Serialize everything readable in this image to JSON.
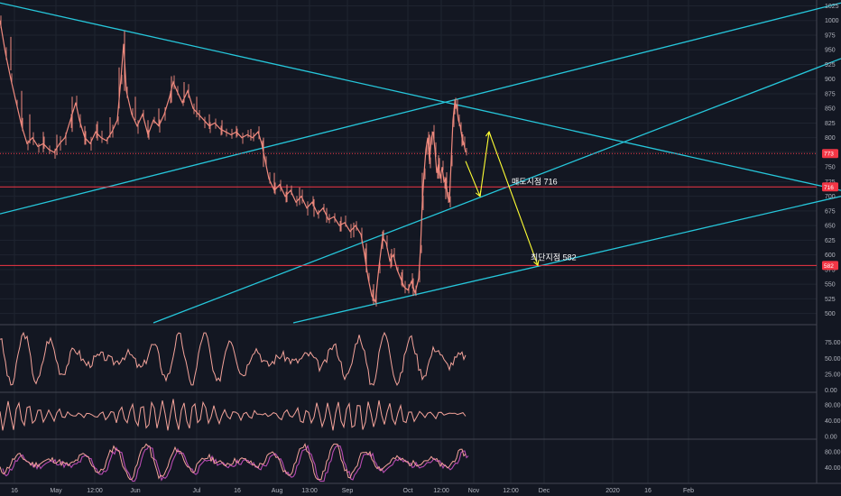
{
  "colors": {
    "background": "#131722",
    "grid": "#1f2430",
    "axis_text": "#b2b5be",
    "candle": "#f08a7e",
    "trendline": "#26c6da",
    "level": "#f23645",
    "arrow": "#ffff33",
    "oscillator": "#f4a39a",
    "signal": "#b84bb3"
  },
  "chart_data": [
    {
      "type": "line",
      "name": "price",
      "y_axis": {
        "ticks": [
          1025,
          1000,
          975,
          950,
          925,
          900,
          875,
          850,
          825,
          800,
          775,
          750,
          725,
          700,
          675,
          650,
          625,
          600,
          575,
          550,
          525,
          500
        ],
        "tick_labels": [
          "1025",
          "1000",
          "975",
          "950",
          "925",
          "900",
          "875",
          "850",
          "825",
          "800",
          "775",
          "750",
          "725",
          "700",
          "675",
          "650",
          "625",
          "600",
          "575",
          "550",
          "525",
          "500"
        ],
        "ylim": [
          484,
          1035
        ]
      },
      "x_axis": {
        "ticks": [
          16,
          62,
          105,
          150,
          218,
          263,
          307,
          343,
          385,
          452,
          489,
          525,
          566,
          603,
          679,
          718,
          763
        ],
        "labels": [
          "16",
          "May",
          "12:00",
          "Jun",
          "Jul",
          "16",
          "Aug",
          "13:00",
          "Sep",
          "Oct",
          "12:00",
          "Nov",
          "12:00",
          "Dec",
          "2020",
          "16",
          "Feb"
        ]
      },
      "price_points": [
        [
          0,
          1000
        ],
        [
          6,
          945
        ],
        [
          12,
          900
        ],
        [
          18,
          860
        ],
        [
          24,
          820
        ],
        [
          30,
          790
        ],
        [
          36,
          800
        ],
        [
          42,
          785
        ],
        [
          48,
          790
        ],
        [
          54,
          780
        ],
        [
          60,
          775
        ],
        [
          66,
          790
        ],
        [
          72,
          800
        ],
        [
          78,
          830
        ],
        [
          84,
          860
        ],
        [
          88,
          830
        ],
        [
          94,
          800
        ],
        [
          100,
          790
        ],
        [
          106,
          810
        ],
        [
          112,
          800
        ],
        [
          118,
          795
        ],
        [
          124,
          810
        ],
        [
          130,
          830
        ],
        [
          134,
          900
        ],
        [
          137,
          960
        ],
        [
          140,
          880
        ],
        [
          146,
          840
        ],
        [
          152,
          820
        ],
        [
          158,
          840
        ],
        [
          164,
          805
        ],
        [
          170,
          830
        ],
        [
          176,
          820
        ],
        [
          182,
          840
        ],
        [
          188,
          870
        ],
        [
          192,
          895
        ],
        [
          196,
          880
        ],
        [
          202,
          860
        ],
        [
          208,
          880
        ],
        [
          214,
          850
        ],
        [
          220,
          840
        ],
        [
          226,
          830
        ],
        [
          232,
          820
        ],
        [
          238,
          825
        ],
        [
          244,
          815
        ],
        [
          250,
          810
        ],
        [
          256,
          805
        ],
        [
          262,
          810
        ],
        [
          268,
          800
        ],
        [
          274,
          805
        ],
        [
          280,
          800
        ],
        [
          286,
          810
        ],
        [
          290,
          790
        ],
        [
          294,
          760
        ],
        [
          298,
          730
        ],
        [
          304,
          710
        ],
        [
          310,
          720
        ],
        [
          316,
          700
        ],
        [
          322,
          710
        ],
        [
          328,
          690
        ],
        [
          334,
          700
        ],
        [
          340,
          680
        ],
        [
          346,
          690
        ],
        [
          352,
          670
        ],
        [
          358,
          680
        ],
        [
          364,
          660
        ],
        [
          370,
          665
        ],
        [
          376,
          650
        ],
        [
          382,
          655
        ],
        [
          388,
          640
        ],
        [
          394,
          650
        ],
        [
          400,
          635
        ],
        [
          404,
          600
        ],
        [
          408,
          560
        ],
        [
          412,
          530
        ],
        [
          416,
          520
        ],
        [
          420,
          580
        ],
        [
          424,
          630
        ],
        [
          428,
          620
        ],
        [
          432,
          590
        ],
        [
          436,
          600
        ],
        [
          440,
          575
        ],
        [
          444,
          560
        ],
        [
          448,
          545
        ],
        [
          452,
          540
        ],
        [
          456,
          555
        ],
        [
          460,
          535
        ],
        [
          464,
          560
        ],
        [
          466,
          610
        ],
        [
          468,
          690
        ],
        [
          470,
          740
        ],
        [
          472,
          780
        ],
        [
          474,
          800
        ],
        [
          476,
          760
        ],
        [
          478,
          800
        ],
        [
          480,
          810
        ],
        [
          482,
          780
        ],
        [
          484,
          740
        ],
        [
          486,
          755
        ],
        [
          488,
          730
        ],
        [
          490,
          750
        ],
        [
          492,
          725
        ],
        [
          494,
          730
        ],
        [
          496,
          700
        ],
        [
          498,
          690
        ],
        [
          500,
          760
        ],
        [
          502,
          830
        ],
        [
          504,
          860
        ],
        [
          506,
          855
        ],
        [
          508,
          830
        ],
        [
          510,
          820
        ],
        [
          512,
          800
        ],
        [
          514,
          790
        ],
        [
          516,
          775
        ]
      ],
      "candle_marks": [
        [
          12,
          915,
          972
        ],
        [
          24,
          820,
          880
        ],
        [
          33,
          790,
          840
        ],
        [
          48,
          775,
          810
        ],
        [
          63,
          770,
          805
        ],
        [
          80,
          810,
          870
        ],
        [
          94,
          788,
          820
        ],
        [
          108,
          795,
          828
        ],
        [
          122,
          800,
          835
        ],
        [
          132,
          850,
          920
        ],
        [
          138,
          880,
          982
        ],
        [
          150,
          830,
          870
        ],
        [
          164,
          800,
          830
        ],
        [
          176,
          820,
          850
        ],
        [
          190,
          860,
          905
        ],
        [
          204,
          860,
          895
        ],
        [
          218,
          835,
          870
        ],
        [
          232,
          815,
          840
        ],
        [
          246,
          805,
          830
        ],
        [
          262,
          800,
          820
        ],
        [
          278,
          795,
          815
        ],
        [
          292,
          750,
          800
        ],
        [
          304,
          705,
          740
        ],
        [
          318,
          690,
          720
        ],
        [
          332,
          685,
          715
        ],
        [
          348,
          665,
          695
        ],
        [
          362,
          655,
          680
        ],
        [
          378,
          640,
          665
        ],
        [
          392,
          630,
          655
        ],
        [
          406,
          570,
          620
        ],
        [
          414,
          515,
          550
        ],
        [
          424,
          610,
          640
        ],
        [
          434,
          580,
          610
        ],
        [
          446,
          545,
          575
        ],
        [
          458,
          530,
          560
        ],
        [
          468,
          680,
          740
        ],
        [
          476,
          755,
          805
        ],
        [
          486,
          730,
          770
        ],
        [
          494,
          695,
          730
        ],
        [
          504,
          840,
          865
        ],
        [
          512,
          785,
          810
        ]
      ],
      "trendlines": [
        {
          "points": [
            [
              0,
              1030
            ],
            [
              932,
              710
            ]
          ]
        },
        {
          "points": [
            [
              0,
              670
            ],
            [
              932,
              1030
            ]
          ]
        },
        {
          "points": [
            [
              170,
              484
            ],
            [
              932,
              935
            ]
          ]
        },
        {
          "points": [
            [
              325,
              484
            ],
            [
              932,
              700
            ]
          ]
        }
      ],
      "levels": [
        {
          "value": 773,
          "label": "773",
          "style": "dashed"
        },
        {
          "value": 716,
          "label": "716",
          "style": "solid"
        },
        {
          "value": 582,
          "label": "582",
          "style": "solid"
        }
      ],
      "arrows": [
        {
          "points": [
            [
              516,
              760
            ],
            [
              532,
              700
            ]
          ]
        },
        {
          "points": [
            [
              532,
              700
            ],
            [
              542,
              810
            ]
          ]
        },
        {
          "points": [
            [
              542,
              810
            ],
            [
              596,
              582
            ]
          ]
        }
      ],
      "annotations": [
        {
          "text": "매도시점 716",
          "x": 567,
          "y": 716
        },
        {
          "text": "최단지점 582",
          "x": 588,
          "y": 586
        }
      ]
    },
    {
      "type": "line",
      "name": "oscillator-1",
      "y_axis": {
        "ticks": [
          75,
          50,
          25,
          0
        ],
        "tick_labels": [
          "75.00",
          "50.00",
          "25.00",
          "0.00"
        ],
        "ylim": [
          -2,
          100
        ]
      },
      "seed": 3,
      "range": [
        8,
        90
      ],
      "color": "oscillator"
    },
    {
      "type": "line",
      "name": "oscillator-2",
      "y_axis": {
        "ticks": [
          80,
          40,
          0
        ],
        "tick_labels": [
          "80.00",
          "40.00",
          "0.00"
        ],
        "ylim": [
          -5,
          110
        ]
      },
      "seed": 7,
      "range": [
        15,
        95
      ],
      "color": "oscillator"
    },
    {
      "type": "line",
      "name": "oscillator-3",
      "y_axis": {
        "ticks": [
          80,
          40
        ],
        "tick_labels": [
          "80.00",
          "40.00"
        ],
        "ylim": [
          0,
          110
        ]
      },
      "seed": 11,
      "range": [
        10,
        100
      ],
      "color": "oscillator",
      "signal": true
    }
  ]
}
